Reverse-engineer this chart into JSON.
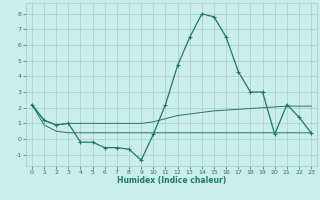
{
  "xlabel": "Humidex (Indice chaleur)",
  "x": [
    0,
    1,
    2,
    3,
    4,
    5,
    6,
    7,
    8,
    9,
    10,
    11,
    12,
    13,
    14,
    15,
    16,
    17,
    18,
    19,
    20,
    21,
    22,
    23
  ],
  "y_main": [
    2.2,
    1.2,
    0.9,
    1.0,
    -0.2,
    -0.2,
    -0.55,
    -0.55,
    -0.65,
    -1.35,
    0.3,
    2.2,
    4.7,
    6.5,
    8.0,
    7.8,
    6.5,
    4.3,
    3.0,
    3.0,
    0.3,
    2.2,
    1.4,
    0.4
  ],
  "y_env_upper": [
    2.2,
    1.2,
    0.9,
    1.0,
    1.0,
    1.0,
    1.0,
    1.0,
    1.0,
    1.0,
    1.1,
    1.3,
    1.5,
    1.6,
    1.7,
    1.8,
    1.85,
    1.9,
    1.95,
    2.0,
    2.05,
    2.1,
    2.1,
    2.1
  ],
  "y_env_lower": [
    2.2,
    0.9,
    0.5,
    0.4,
    0.4,
    0.4,
    0.4,
    0.4,
    0.4,
    0.4,
    0.4,
    0.4,
    0.4,
    0.4,
    0.4,
    0.4,
    0.4,
    0.4,
    0.4,
    0.4,
    0.4,
    0.4,
    0.4,
    0.4
  ],
  "bg_color": "#cceeea",
  "grid_color": "#aaccca",
  "line_color": "#1a7a6e",
  "ylim": [
    -1.7,
    8.7
  ],
  "xlim": [
    -0.5,
    23.5
  ],
  "yticks": [
    -1,
    0,
    1,
    2,
    3,
    4,
    5,
    6,
    7,
    8
  ],
  "xticks": [
    0,
    1,
    2,
    3,
    4,
    5,
    6,
    7,
    8,
    9,
    10,
    11,
    12,
    13,
    14,
    15,
    16,
    17,
    18,
    19,
    20,
    21,
    22,
    23
  ]
}
